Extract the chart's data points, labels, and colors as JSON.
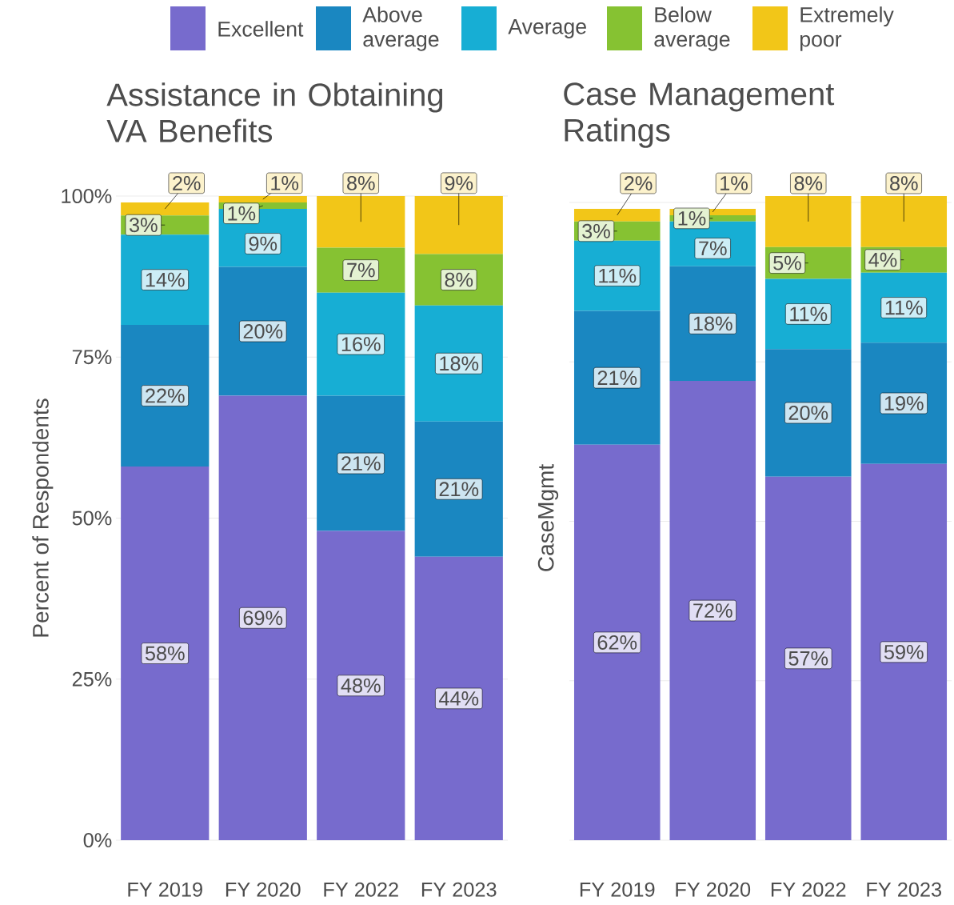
{
  "chart_data": [
    {
      "type": "bar",
      "stacked": true,
      "title": "Assistance in Obtaining VA Benefits",
      "ylabel": "Percent of Respondents",
      "categories": [
        "FY 2019",
        "FY 2020",
        "FY 2022",
        "FY 2023"
      ],
      "series": [
        {
          "name": "Excellent",
          "color": "#776bcd",
          "values": [
            58,
            69,
            48,
            44
          ],
          "value_labels": [
            "58%",
            "69%",
            "48%",
            "44%"
          ]
        },
        {
          "name": "Above average",
          "color": "#1a87c1",
          "values": [
            22,
            20,
            21,
            21
          ],
          "value_labels": [
            "22%",
            "20%",
            "21%",
            "21%"
          ]
        },
        {
          "name": "Average",
          "color": "#17aed4",
          "values": [
            14,
            9,
            16,
            18
          ],
          "value_labels": [
            "14%",
            "9%",
            "16%",
            "18%"
          ]
        },
        {
          "name": "Below average",
          "color": "#86c232",
          "values": [
            3,
            1,
            7,
            8
          ],
          "value_labels": [
            "3%",
            "1%",
            "7%",
            "8%"
          ]
        },
        {
          "name": "Extremely poor",
          "color": "#f2c618",
          "values": [
            2,
            1,
            8,
            9
          ],
          "value_labels": [
            "2%",
            "1%",
            "8%",
            "9%"
          ]
        }
      ],
      "ylim": [
        0,
        100
      ],
      "yticks": [
        {
          "value": 0,
          "label": "0%"
        },
        {
          "value": 25,
          "label": "25%"
        },
        {
          "value": 50,
          "label": "50%"
        },
        {
          "value": 75,
          "label": "75%"
        },
        {
          "value": 100,
          "label": "100%"
        }
      ],
      "grid": "y",
      "legend": "top"
    },
    {
      "type": "bar",
      "stacked": true,
      "title": "Case Management Ratings",
      "ylabel": "CaseMgmt",
      "categories": [
        "FY 2019",
        "FY 2020",
        "FY 2022",
        "FY 2023"
      ],
      "series": [
        {
          "color": "#776bcd",
          "values": [
            62,
            72,
            57,
            59
          ],
          "value_labels": [
            "62%",
            "72%",
            "57%",
            "59%"
          ]
        },
        {
          "color": "#1a87c1",
          "values": [
            21,
            18,
            20,
            19
          ],
          "value_labels": [
            "21%",
            "18%",
            "20%",
            "19%"
          ]
        },
        {
          "color": "#17aed4",
          "values": [
            11,
            7,
            11,
            11
          ],
          "value_labels": [
            "11%",
            "7%",
            "11%",
            "11%"
          ]
        },
        {
          "color": "#86c232",
          "values": [
            3,
            1,
            5,
            4
          ],
          "value_labels": [
            "3%",
            "1%",
            "5%",
            "4%"
          ]
        },
        {
          "color": "#f2c618",
          "values": [
            2,
            1,
            8,
            8
          ],
          "value_labels": [
            "2%",
            "1%",
            "8%",
            "8%"
          ]
        }
      ],
      "ylim": [
        0,
        101
      ],
      "yticks": [
        {
          "value": 0,
          "label": null
        },
        {
          "value": 25,
          "label": null
        },
        {
          "value": 50,
          "label": null
        },
        {
          "value": 75,
          "label": null
        },
        {
          "value": 100,
          "label": null
        }
      ],
      "grid": "y",
      "tick_labels": "x"
    }
  ]
}
